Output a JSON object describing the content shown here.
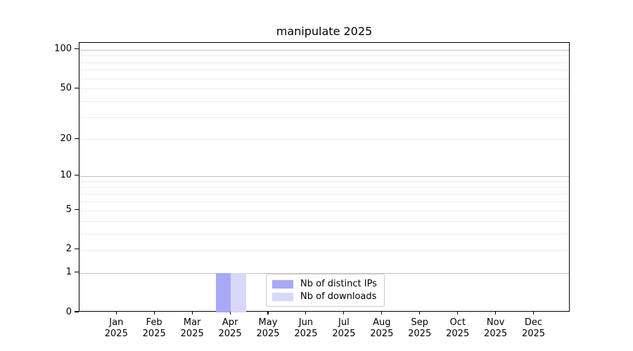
{
  "title": "manipulate 2025",
  "chart_data": {
    "type": "bar",
    "title": "manipulate 2025",
    "categories": [
      "Jan",
      "Feb",
      "Mar",
      "Apr",
      "May",
      "Jun",
      "Jul",
      "Aug",
      "Sep",
      "Oct",
      "Nov",
      "Dec"
    ],
    "category_sublabel": "2025",
    "series": [
      {
        "name": "Nb of distinct IPs",
        "color": "#a8a8f8",
        "values": [
          0,
          0,
          0,
          1,
          0,
          0,
          0,
          0,
          0,
          0,
          0,
          0
        ]
      },
      {
        "name": "Nb of downloads",
        "color": "#d8d8f8",
        "values": [
          0,
          0,
          0,
          1,
          0,
          0,
          0,
          0,
          0,
          0,
          0,
          0
        ]
      }
    ],
    "xlabel": "",
    "ylabel": "",
    "yscale": "log1p",
    "ylim": [
      0,
      113
    ],
    "yticks": [
      0,
      1,
      2,
      5,
      10,
      20,
      50,
      100
    ],
    "major_gridlines": [
      1,
      10,
      100
    ],
    "minor_gridlines": [
      2,
      3,
      4,
      5,
      6,
      7,
      8,
      9,
      20,
      30,
      40,
      50,
      60,
      70,
      80,
      90
    ],
    "grid": true,
    "legend_position": "lower center",
    "colors": {
      "grid_major": "#c2c2c2",
      "grid_minor": "#ececec",
      "spine": "#000000",
      "background": "#ffffff"
    }
  }
}
